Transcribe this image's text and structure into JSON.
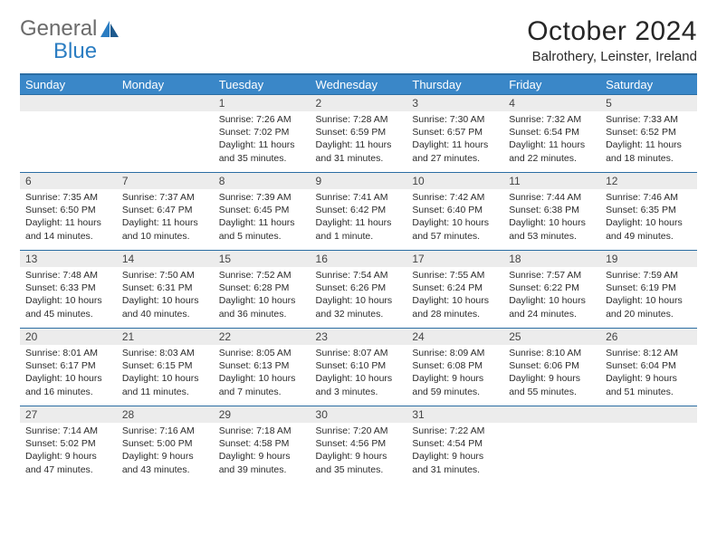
{
  "logo": {
    "text1": "General",
    "text2": "Blue"
  },
  "title": "October 2024",
  "subtitle": "Balrothery, Leinster, Ireland",
  "colors": {
    "header_bg": "#3a87c8",
    "header_border": "#2b6da3",
    "daynum_bg": "#ececec",
    "text": "#2b2b2b",
    "logo_gray": "#6b6b6b",
    "logo_blue": "#2b7dc2",
    "page_bg": "#ffffff"
  },
  "calendar": {
    "type": "table",
    "columns": [
      "Sunday",
      "Monday",
      "Tuesday",
      "Wednesday",
      "Thursday",
      "Friday",
      "Saturday"
    ],
    "weeks": [
      [
        null,
        null,
        {
          "day": "1",
          "sunrise": "Sunrise: 7:26 AM",
          "sunset": "Sunset: 7:02 PM",
          "daylight": "Daylight: 11 hours and 35 minutes."
        },
        {
          "day": "2",
          "sunrise": "Sunrise: 7:28 AM",
          "sunset": "Sunset: 6:59 PM",
          "daylight": "Daylight: 11 hours and 31 minutes."
        },
        {
          "day": "3",
          "sunrise": "Sunrise: 7:30 AM",
          "sunset": "Sunset: 6:57 PM",
          "daylight": "Daylight: 11 hours and 27 minutes."
        },
        {
          "day": "4",
          "sunrise": "Sunrise: 7:32 AM",
          "sunset": "Sunset: 6:54 PM",
          "daylight": "Daylight: 11 hours and 22 minutes."
        },
        {
          "day": "5",
          "sunrise": "Sunrise: 7:33 AM",
          "sunset": "Sunset: 6:52 PM",
          "daylight": "Daylight: 11 hours and 18 minutes."
        }
      ],
      [
        {
          "day": "6",
          "sunrise": "Sunrise: 7:35 AM",
          "sunset": "Sunset: 6:50 PM",
          "daylight": "Daylight: 11 hours and 14 minutes."
        },
        {
          "day": "7",
          "sunrise": "Sunrise: 7:37 AM",
          "sunset": "Sunset: 6:47 PM",
          "daylight": "Daylight: 11 hours and 10 minutes."
        },
        {
          "day": "8",
          "sunrise": "Sunrise: 7:39 AM",
          "sunset": "Sunset: 6:45 PM",
          "daylight": "Daylight: 11 hours and 5 minutes."
        },
        {
          "day": "9",
          "sunrise": "Sunrise: 7:41 AM",
          "sunset": "Sunset: 6:42 PM",
          "daylight": "Daylight: 11 hours and 1 minute."
        },
        {
          "day": "10",
          "sunrise": "Sunrise: 7:42 AM",
          "sunset": "Sunset: 6:40 PM",
          "daylight": "Daylight: 10 hours and 57 minutes."
        },
        {
          "day": "11",
          "sunrise": "Sunrise: 7:44 AM",
          "sunset": "Sunset: 6:38 PM",
          "daylight": "Daylight: 10 hours and 53 minutes."
        },
        {
          "day": "12",
          "sunrise": "Sunrise: 7:46 AM",
          "sunset": "Sunset: 6:35 PM",
          "daylight": "Daylight: 10 hours and 49 minutes."
        }
      ],
      [
        {
          "day": "13",
          "sunrise": "Sunrise: 7:48 AM",
          "sunset": "Sunset: 6:33 PM",
          "daylight": "Daylight: 10 hours and 45 minutes."
        },
        {
          "day": "14",
          "sunrise": "Sunrise: 7:50 AM",
          "sunset": "Sunset: 6:31 PM",
          "daylight": "Daylight: 10 hours and 40 minutes."
        },
        {
          "day": "15",
          "sunrise": "Sunrise: 7:52 AM",
          "sunset": "Sunset: 6:28 PM",
          "daylight": "Daylight: 10 hours and 36 minutes."
        },
        {
          "day": "16",
          "sunrise": "Sunrise: 7:54 AM",
          "sunset": "Sunset: 6:26 PM",
          "daylight": "Daylight: 10 hours and 32 minutes."
        },
        {
          "day": "17",
          "sunrise": "Sunrise: 7:55 AM",
          "sunset": "Sunset: 6:24 PM",
          "daylight": "Daylight: 10 hours and 28 minutes."
        },
        {
          "day": "18",
          "sunrise": "Sunrise: 7:57 AM",
          "sunset": "Sunset: 6:22 PM",
          "daylight": "Daylight: 10 hours and 24 minutes."
        },
        {
          "day": "19",
          "sunrise": "Sunrise: 7:59 AM",
          "sunset": "Sunset: 6:19 PM",
          "daylight": "Daylight: 10 hours and 20 minutes."
        }
      ],
      [
        {
          "day": "20",
          "sunrise": "Sunrise: 8:01 AM",
          "sunset": "Sunset: 6:17 PM",
          "daylight": "Daylight: 10 hours and 16 minutes."
        },
        {
          "day": "21",
          "sunrise": "Sunrise: 8:03 AM",
          "sunset": "Sunset: 6:15 PM",
          "daylight": "Daylight: 10 hours and 11 minutes."
        },
        {
          "day": "22",
          "sunrise": "Sunrise: 8:05 AM",
          "sunset": "Sunset: 6:13 PM",
          "daylight": "Daylight: 10 hours and 7 minutes."
        },
        {
          "day": "23",
          "sunrise": "Sunrise: 8:07 AM",
          "sunset": "Sunset: 6:10 PM",
          "daylight": "Daylight: 10 hours and 3 minutes."
        },
        {
          "day": "24",
          "sunrise": "Sunrise: 8:09 AM",
          "sunset": "Sunset: 6:08 PM",
          "daylight": "Daylight: 9 hours and 59 minutes."
        },
        {
          "day": "25",
          "sunrise": "Sunrise: 8:10 AM",
          "sunset": "Sunset: 6:06 PM",
          "daylight": "Daylight: 9 hours and 55 minutes."
        },
        {
          "day": "26",
          "sunrise": "Sunrise: 8:12 AM",
          "sunset": "Sunset: 6:04 PM",
          "daylight": "Daylight: 9 hours and 51 minutes."
        }
      ],
      [
        {
          "day": "27",
          "sunrise": "Sunrise: 7:14 AM",
          "sunset": "Sunset: 5:02 PM",
          "daylight": "Daylight: 9 hours and 47 minutes."
        },
        {
          "day": "28",
          "sunrise": "Sunrise: 7:16 AM",
          "sunset": "Sunset: 5:00 PM",
          "daylight": "Daylight: 9 hours and 43 minutes."
        },
        {
          "day": "29",
          "sunrise": "Sunrise: 7:18 AM",
          "sunset": "Sunset: 4:58 PM",
          "daylight": "Daylight: 9 hours and 39 minutes."
        },
        {
          "day": "30",
          "sunrise": "Sunrise: 7:20 AM",
          "sunset": "Sunset: 4:56 PM",
          "daylight": "Daylight: 9 hours and 35 minutes."
        },
        {
          "day": "31",
          "sunrise": "Sunrise: 7:22 AM",
          "sunset": "Sunset: 4:54 PM",
          "daylight": "Daylight: 9 hours and 31 minutes."
        },
        null,
        null
      ]
    ]
  }
}
